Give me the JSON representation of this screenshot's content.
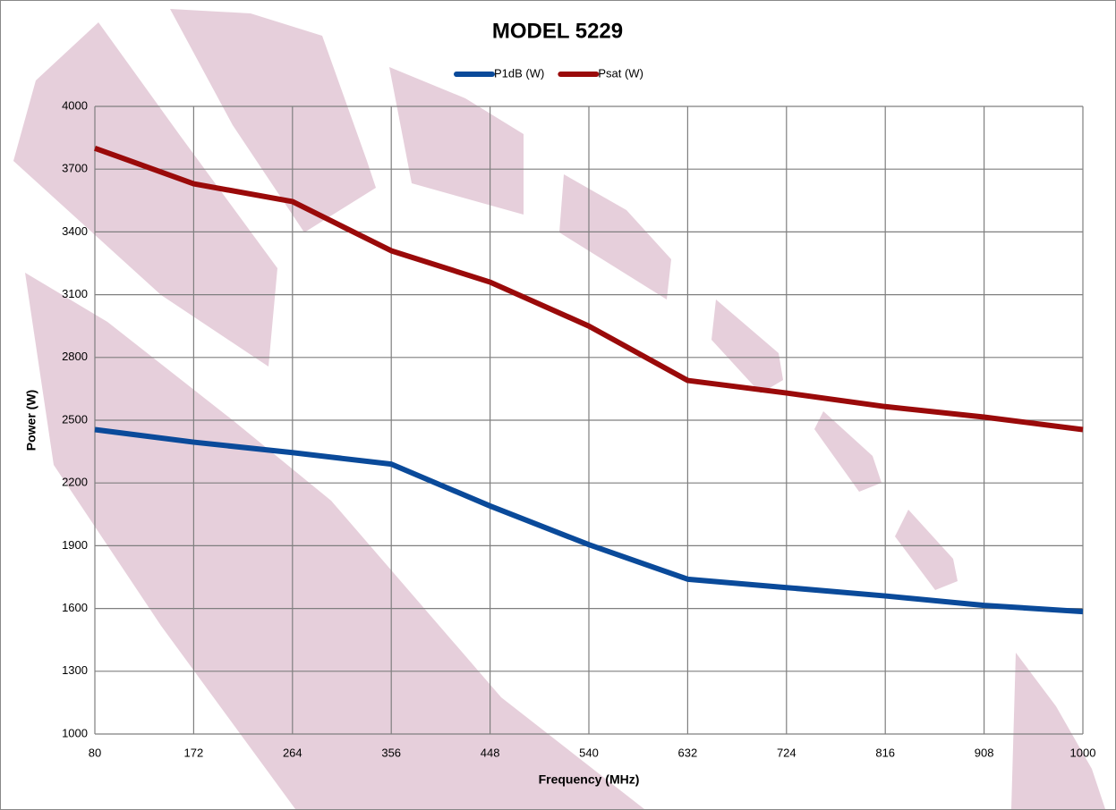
{
  "chart_data": {
    "type": "line",
    "title": "MODEL 5229",
    "x_label": "Frequency (MHz)",
    "y_label": "Power (W)",
    "x": [
      80,
      172,
      264,
      356,
      448,
      540,
      632,
      724,
      816,
      908,
      1000
    ],
    "series": [
      {
        "name": "P1dB (W)",
        "color": "#0a4a9a",
        "values": [
          2455,
          2395,
          2345,
          2290,
          2090,
          1905,
          1740,
          1700,
          1660,
          1615,
          1585
        ]
      },
      {
        "name": "Psat (W)",
        "color": "#9a0a0a",
        "values": [
          3800,
          3630,
          3545,
          3310,
          3160,
          2950,
          2690,
          2630,
          2565,
          2515,
          2455
        ]
      }
    ],
    "xlim": [
      80,
      1000
    ],
    "xticks": [
      80,
      172,
      264,
      356,
      448,
      540,
      632,
      724,
      816,
      908,
      1000
    ],
    "ylim": [
      1000,
      4000
    ],
    "yticks": [
      1000,
      1300,
      1600,
      1900,
      2200,
      2500,
      2800,
      3100,
      3400,
      3700,
      4000
    ],
    "grid": true,
    "legend": "top"
  }
}
